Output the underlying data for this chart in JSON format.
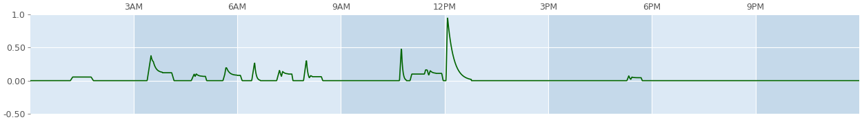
{
  "title": "",
  "line_color": "#006400",
  "line_width": 1.2,
  "bg_color_light": "#dce9f5",
  "bg_color_dark": "#c8dced",
  "fig_bg_color": "#ffffff",
  "ylim": [
    -0.5,
    1.0
  ],
  "yticks": [
    -0.5,
    0.0,
    0.5,
    1.0
  ],
  "ytick_labels": [
    "-0.50",
    "0.00",
    "0.50",
    "1.0"
  ],
  "xlim": [
    0,
    86400
  ],
  "xtick_positions": [
    10800,
    21600,
    32400,
    43200,
    54000,
    64800,
    75600
  ],
  "xtick_labels": [
    "3AM",
    "6AM",
    "9AM",
    "12PM",
    "3PM",
    "6PM",
    "9PM"
  ],
  "grid_color": "#ffffff",
  "grid_alpha": 1.0,
  "tick_color": "#555555",
  "tick_fontsize": 9,
  "stripe_light": "#dce9f5",
  "stripe_dark": "#c5d9ea"
}
